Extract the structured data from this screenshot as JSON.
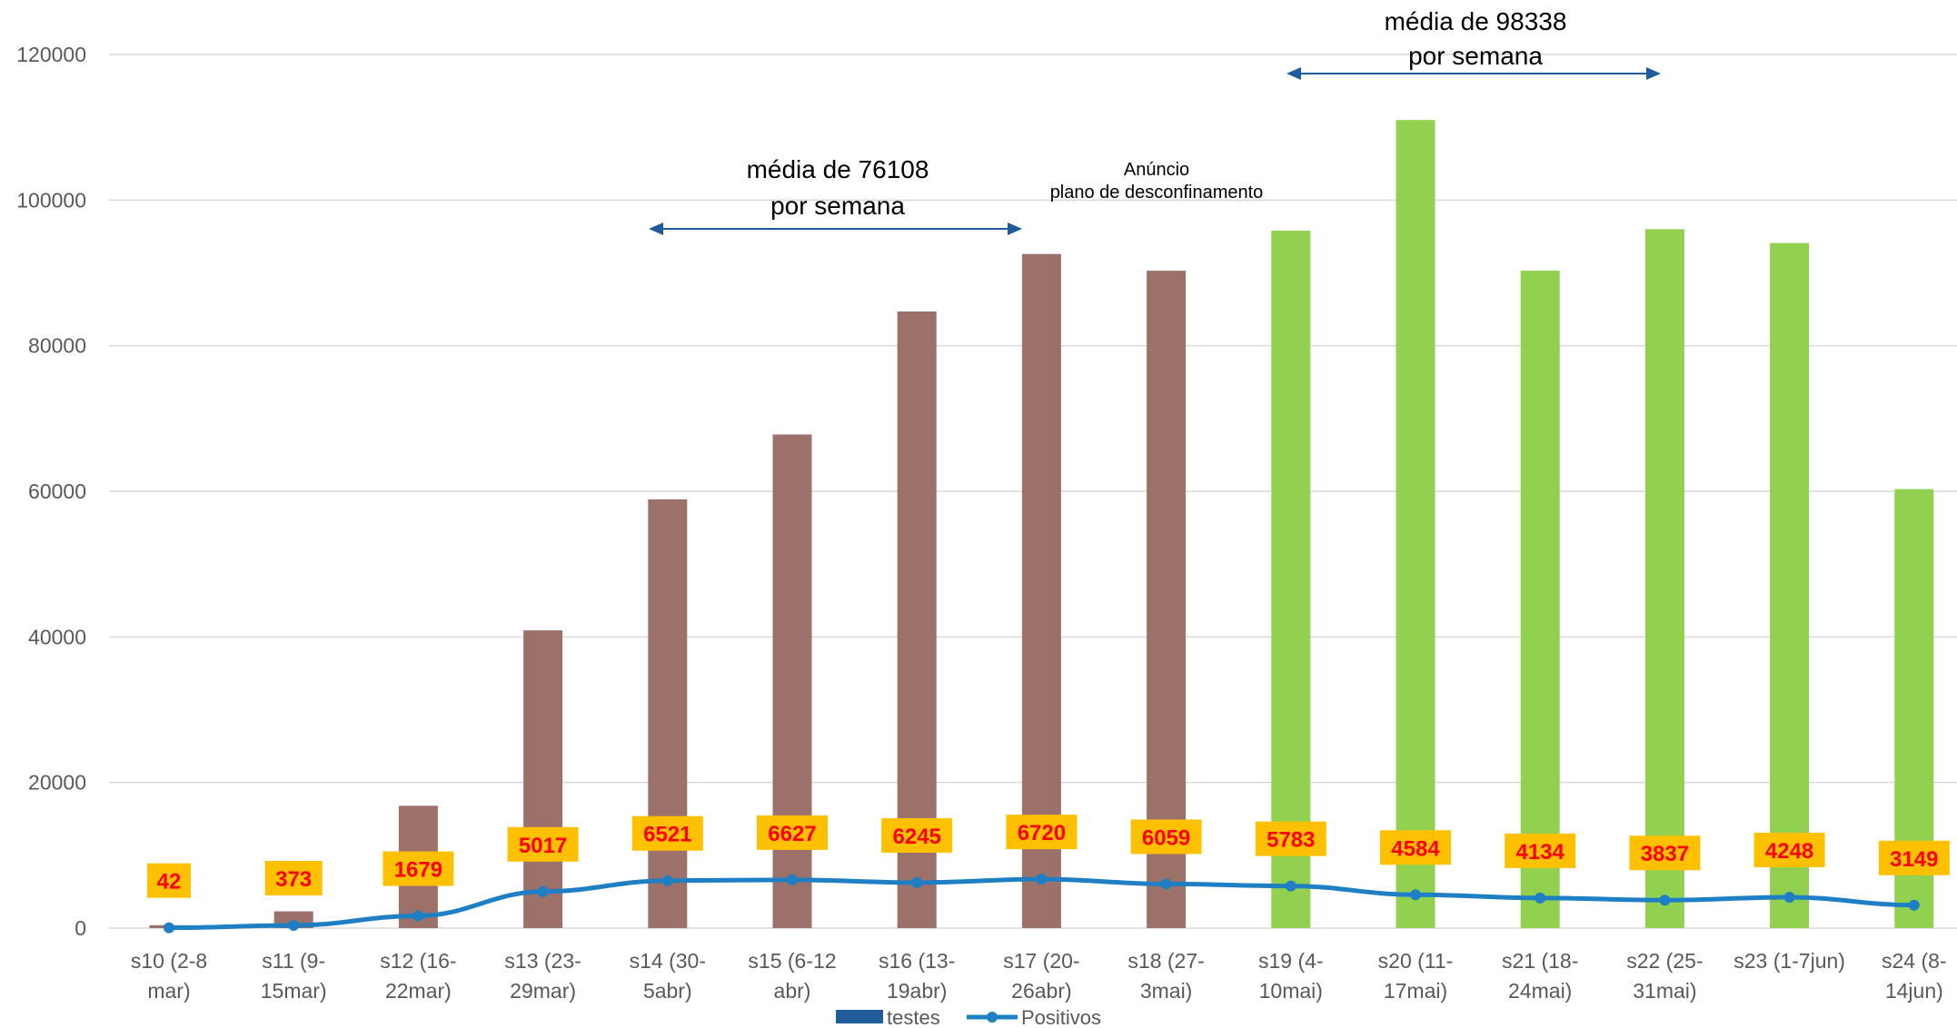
{
  "chart_data": {
    "type": "bar",
    "categories": [
      [
        "s10 (2-8",
        "mar)"
      ],
      [
        "s11 (9-",
        "15mar)"
      ],
      [
        "s12 (16-",
        "22mar)"
      ],
      [
        "s13 (23-",
        "29mar)"
      ],
      [
        "s14 (30-",
        "5abr)"
      ],
      [
        "s15 (6-12",
        "abr)"
      ],
      [
        "s16 (13-",
        "19abr)"
      ],
      [
        "s17 (20-",
        "26abr)"
      ],
      [
        "s18 (27-",
        "3mai)"
      ],
      [
        "s19 (4-",
        "10mai)"
      ],
      [
        "s20 (11-",
        "17mai)"
      ],
      [
        "s21 (18-",
        "24mai)"
      ],
      [
        "s22 (25-",
        "31mai)"
      ],
      [
        "s23 (1-7jun)"
      ],
      [
        "s24 (8-",
        "14jun)"
      ]
    ],
    "series": [
      {
        "name": "testes",
        "kind": "bar",
        "values": [
          400,
          2300,
          16800,
          40900,
          58900,
          67800,
          84700,
          92600,
          90300,
          95800,
          111000,
          90300,
          96000,
          94100,
          60300
        ],
        "colors": [
          "#9b716a",
          "#9b716a",
          "#9b716a",
          "#9b716a",
          "#9b716a",
          "#9b716a",
          "#9b716a",
          "#9b716a",
          "#9b716a",
          "#92d050",
          "#92d050",
          "#92d050",
          "#92d050",
          "#92d050",
          "#92d050"
        ]
      },
      {
        "name": "Positivos",
        "kind": "line",
        "color": "#1f7fc4",
        "values": [
          42,
          373,
          1679,
          5017,
          6521,
          6627,
          6245,
          6720,
          6059,
          5783,
          4584,
          4134,
          3837,
          4248,
          3149
        ]
      }
    ],
    "ylim": [
      0,
      120000
    ],
    "yticks": [
      0,
      20000,
      40000,
      60000,
      80000,
      100000,
      120000
    ],
    "grid": true,
    "legend_position": "bottom",
    "legend_bar_color": "#1f5c99",
    "label_box_color": "#ffc000",
    "label_text_color": "#ff0000",
    "annotations": [
      {
        "lines": [
          "média de 76108",
          "por semana"
        ],
        "from_index": 4,
        "to_index": 7
      },
      {
        "lines": [
          "média de 98338",
          "por semana"
        ],
        "from_index": 9,
        "to_index": 12
      },
      {
        "lines": [
          "Anúncio",
          "plano de desconfinamento"
        ],
        "at_index": 8
      }
    ]
  }
}
